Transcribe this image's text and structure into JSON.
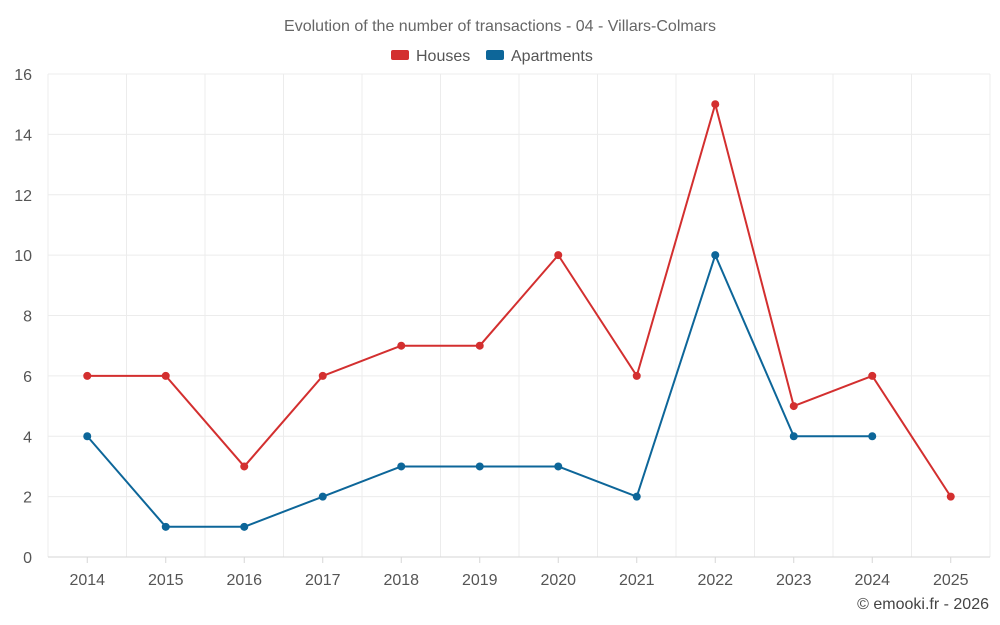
{
  "chart_data": {
    "type": "line",
    "title": "Evolution of the number of transactions - 04 - Villars-Colmars",
    "x": [
      "2014",
      "2015",
      "2016",
      "2017",
      "2018",
      "2019",
      "2020",
      "2021",
      "2022",
      "2023",
      "2024",
      "2025"
    ],
    "ylim": [
      0,
      16
    ],
    "yticks": [
      0,
      2,
      4,
      6,
      8,
      10,
      12,
      14,
      16
    ],
    "grid": true,
    "legend_position": "top-center",
    "series": [
      {
        "name": "Houses",
        "color": "#d32f2f",
        "values": [
          6,
          6,
          3,
          6,
          7,
          7,
          10,
          6,
          15,
          5,
          6,
          2
        ]
      },
      {
        "name": "Apartments",
        "color": "#0d6699",
        "values": [
          4,
          1,
          1,
          2,
          3,
          3,
          3,
          2,
          10,
          4,
          4,
          null
        ]
      }
    ],
    "credit": "© emooki.fr - 2026"
  }
}
